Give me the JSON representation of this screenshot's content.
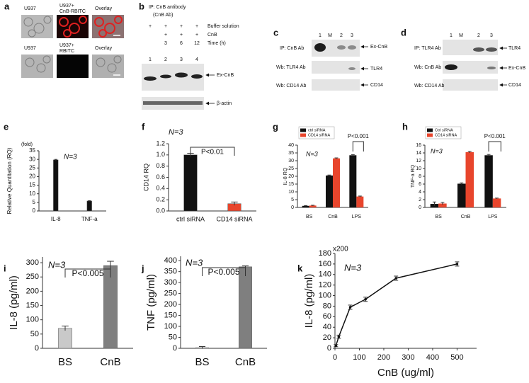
{
  "panels": {
    "a": {
      "label": "a",
      "row1": [
        [
          "U937"
        ],
        [
          "U937+",
          "CnB-RBITC"
        ],
        [
          "Overlay"
        ]
      ],
      "row2": [
        [
          "U937"
        ],
        [
          "U937+",
          "RBITC"
        ],
        [
          "Overlay"
        ]
      ]
    },
    "b": {
      "label": "b",
      "header": "IP: CnB antibody",
      "subheader": "(CnB Ab)",
      "rows": [
        {
          "marks": [
            "+",
            "+",
            "+",
            "+"
          ],
          "name": "Buffer solution"
        },
        {
          "marks": [
            "+",
            "+",
            "+"
          ],
          "name": "CnB"
        },
        {
          "marks": [
            "3",
            "6",
            "12"
          ],
          "name": "Time (h)"
        }
      ],
      "lanes": [
        "1",
        "2",
        "3",
        "4"
      ],
      "bands": [
        "Ex-CnB",
        "β-actin"
      ]
    },
    "c": {
      "label": "c",
      "lanes": [
        "1",
        "M",
        "2",
        "3"
      ],
      "rows": [
        {
          "probe": "IP: CnB Ab",
          "band": "Ex-CnB"
        },
        {
          "probe": "Wb: TLR4 Ab",
          "band": "TLR4"
        },
        {
          "probe": "Wb: CD14 Ab",
          "band": "CD14"
        }
      ]
    },
    "d": {
      "label": "d",
      "lanes": [
        "1",
        "M",
        "2",
        "3"
      ],
      "rows": [
        {
          "probe": "IP: TLR4 Ab",
          "band": "TLR4"
        },
        {
          "probe": "Wb: CnB Ab",
          "band": "Ex-CnB"
        },
        {
          "probe": "Wb: CD14 Ab",
          "band": "CD14"
        }
      ]
    }
  },
  "chart_data": [
    {
      "panel": "e",
      "type": "bar",
      "ylabel": "Relative Quantitation (RQ)",
      "unit_note": "(fold)",
      "annotation": "N=3",
      "categories": [
        "IL-8",
        "TNF-a"
      ],
      "values": [
        29.7,
        5.8
      ],
      "errors": [
        0.3,
        0.2
      ],
      "color": "#111111",
      "ylim": [
        0,
        35
      ],
      "yticks": [
        0,
        5,
        10,
        15,
        20,
        25,
        30,
        35
      ]
    },
    {
      "panel": "f",
      "type": "bar",
      "ylabel": "CD14 RQ",
      "annotation": "N=3",
      "significance": "P<0.01",
      "categories": [
        "ctrl siRNA",
        "CD14 siRNA"
      ],
      "values": [
        1.0,
        0.13
      ],
      "errors": [
        0.03,
        0.03
      ],
      "colors": [
        "#111111",
        "#e8452c"
      ],
      "ylim": [
        0,
        1.2
      ],
      "yticks": [
        {
          "value": 0,
          "label": "0.0"
        },
        0.2,
        0.4,
        0.6,
        0.8,
        {
          "value": 1,
          "label": "1.0"
        },
        1.2
      ]
    },
    {
      "panel": "g",
      "type": "grouped_bar",
      "ylabel": "IL-8 RQ",
      "annotation": "N=3",
      "significance": "P<0.001",
      "categories": [
        "BS",
        "CnB",
        "LPS"
      ],
      "series": [
        {
          "name": "ctrl siRNA",
          "color": "#111111",
          "values": [
            1.0,
            20.5,
            33.5
          ],
          "errors": [
            0.2,
            0.3,
            0.4
          ]
        },
        {
          "name": "CD14 siRNA",
          "color": "#e8452c",
          "values": [
            1.2,
            31.5,
            7.0
          ],
          "errors": [
            0.2,
            0.3,
            0.3
          ]
        }
      ],
      "ylim": [
        0,
        40
      ],
      "yticks": [
        0,
        5,
        10,
        15,
        20,
        25,
        30,
        35,
        40
      ]
    },
    {
      "panel": "h",
      "type": "grouped_bar",
      "ylabel": "TNF-a RQ",
      "annotation": "N=3",
      "significance": "P<0.001",
      "categories": [
        "BS",
        "CnB",
        "LPS"
      ],
      "series": [
        {
          "name": "Ctrl siRNA",
          "color": "#111111",
          "values": [
            0.9,
            6.1,
            13.4
          ],
          "errors": [
            0.5,
            0.2,
            0.2
          ]
        },
        {
          "name": "CD14 siRNA",
          "color": "#e8452c",
          "values": [
            1.0,
            14.2,
            2.3
          ],
          "errors": [
            0.3,
            0.2,
            0.1
          ]
        }
      ],
      "ylim": [
        0,
        16
      ],
      "yticks": [
        0,
        2,
        4,
        6,
        8,
        10,
        12,
        14,
        16
      ]
    },
    {
      "panel": "i",
      "type": "bar",
      "ylabel": "IL-8 (pg/ml)",
      "annotation": "N=3",
      "significance": "P<0.005",
      "categories": [
        "BS",
        "CnB"
      ],
      "values": [
        70,
        290
      ],
      "errors": [
        8,
        15
      ],
      "colors": [
        "#c9c9c9",
        "#7f7f7f"
      ],
      "ylim": [
        0,
        320
      ],
      "yticks": [
        0,
        50,
        100,
        150,
        200,
        250,
        300
      ]
    },
    {
      "panel": "j",
      "type": "bar",
      "ylabel": "TNF (pg/ml)",
      "annotation": "N=3",
      "significance": "P<0.005",
      "categories": [
        "BS",
        "CnB"
      ],
      "values": [
        3,
        372
      ],
      "errors": [
        5,
        4
      ],
      "colors": [
        "#c9c9c9",
        "#7f7f7f"
      ],
      "ylim": [
        0,
        420
      ],
      "yticks": [
        0,
        50,
        100,
        150,
        200,
        250,
        300,
        350,
        400
      ]
    },
    {
      "panel": "k",
      "type": "line",
      "ylabel": "IL-8 (pg/ml)",
      "xlabel": "CnB (ug/ml)",
      "unit_note": "x200",
      "annotation": "N=3",
      "x": [
        3.9,
        15.6,
        62.5,
        125,
        250,
        500
      ],
      "values": [
        5,
        22,
        78,
        93,
        133,
        160
      ],
      "errors": [
        2,
        3,
        4,
        4,
        4,
        4
      ],
      "color": "#111111",
      "xlim": [
        0,
        580
      ],
      "xticks": [
        0,
        100,
        200,
        300,
        400,
        500
      ],
      "ylim": [
        0,
        180
      ],
      "yticks": [
        0,
        20,
        40,
        60,
        80,
        100,
        120,
        140,
        160,
        180
      ]
    }
  ]
}
